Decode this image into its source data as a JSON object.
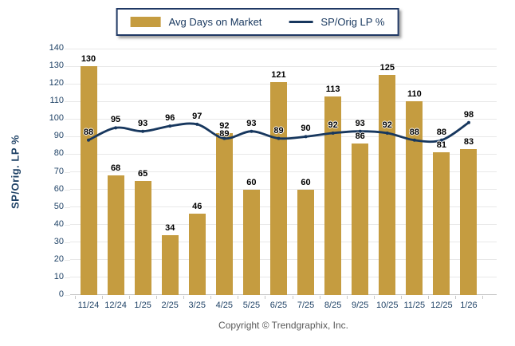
{
  "legend": {
    "bar_label": "Avg Days on Market",
    "line_label": "SP/Orig LP %"
  },
  "y_axis_title": "SP/Orig. LP %",
  "footer": "Copyright © Trendgraphix, Inc.",
  "colors": {
    "bar": "#C59C40",
    "line": "#17375E",
    "axis_text": "#1F4266",
    "data_label": "#000000",
    "gridline": "#E8E8E8",
    "axis_line": "#C9C9C9",
    "legend_border": "#1F3864",
    "legend_text": "#17375E",
    "footer_text": "#595959",
    "background": "#FFFFFF"
  },
  "chart_data": {
    "type": "bar",
    "subtype": "bar+line-combo",
    "categories": [
      "11/24",
      "12/24",
      "1/25",
      "2/25",
      "3/25",
      "4/25",
      "5/25",
      "6/25",
      "7/25",
      "8/25",
      "9/25",
      "10/25",
      "11/25",
      "12/25",
      "1/26"
    ],
    "series": [
      {
        "name": "Avg Days on Market",
        "type": "bar",
        "color": "#C59C40",
        "values": [
          130,
          68,
          65,
          34,
          46,
          92,
          60,
          121,
          60,
          113,
          86,
          125,
          110,
          81,
          83
        ]
      },
      {
        "name": "SP/Orig LP %",
        "type": "line",
        "color": "#17375E",
        "values": [
          88,
          95,
          93,
          96,
          97,
          89,
          93,
          89,
          90,
          92,
          93,
          92,
          88,
          88,
          98
        ]
      }
    ],
    "title": "",
    "xlabel": "",
    "ylabel": "SP/Orig. LP %",
    "ylim": [
      0,
      140
    ],
    "y_tick_step": 10,
    "grid": true,
    "data_labels": true,
    "legend_position": "top"
  }
}
